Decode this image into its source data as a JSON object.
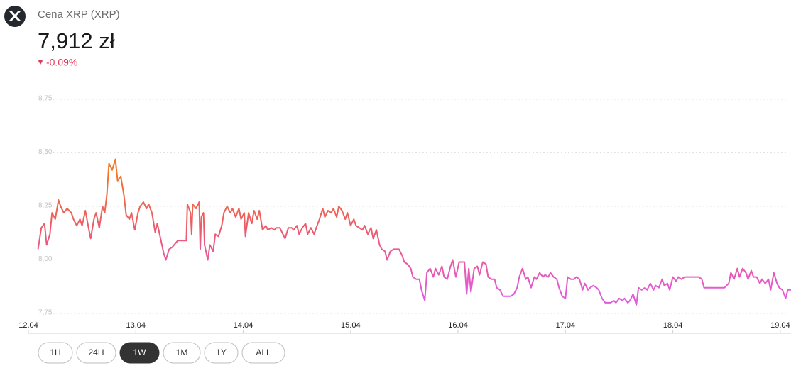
{
  "header": {
    "title": "Cena XRP (XRP)",
    "price": "7,912 zł",
    "change": "-0.09%"
  },
  "range_buttons": [
    "1H",
    "24H",
    "1W",
    "1M",
    "1Y",
    "ALL"
  ],
  "active_range_index": 2,
  "chart_data": {
    "type": "line",
    "xlim": [
      0,
      7.1
    ],
    "xticks": [
      {
        "value": 0,
        "label": "12.04"
      },
      {
        "value": 1,
        "label": "13.04"
      },
      {
        "value": 2,
        "label": "14.04"
      },
      {
        "value": 3,
        "label": "15.04"
      },
      {
        "value": 4,
        "label": "16.04"
      },
      {
        "value": 5,
        "label": "17.04"
      },
      {
        "value": 6,
        "label": "18.04"
      },
      {
        "value": 7,
        "label": "19.04"
      }
    ],
    "ylim": [
      7.73,
      8.78
    ],
    "yticks": [
      {
        "value": 8.75,
        "label": "8,75"
      },
      {
        "value": 8.5,
        "label": "8,50"
      },
      {
        "value": 8.25,
        "label": "8,25"
      },
      {
        "value": 8.0,
        "label": "8,00"
      },
      {
        "value": 7.75,
        "label": "7,75"
      }
    ],
    "grid": true,
    "gradient_colors": [
      "#f47a1f",
      "#ec5a6e",
      "#e25ae0"
    ],
    "x": [
      0.09,
      0.12,
      0.15,
      0.17,
      0.2,
      0.22,
      0.25,
      0.28,
      0.3,
      0.33,
      0.36,
      0.4,
      0.42,
      0.45,
      0.48,
      0.5,
      0.53,
      0.56,
      0.58,
      0.61,
      0.63,
      0.66,
      0.69,
      0.71,
      0.73,
      0.75,
      0.78,
      0.81,
      0.83,
      0.86,
      0.89,
      0.91,
      0.94,
      0.96,
      0.99,
      1.02,
      1.04,
      1.07,
      1.1,
      1.12,
      1.15,
      1.18,
      1.2,
      1.23,
      1.26,
      1.28,
      1.31,
      1.34,
      1.39,
      1.47,
      1.48,
      1.51,
      1.52,
      1.53,
      1.56,
      1.59,
      1.6,
      1.61,
      1.63,
      1.64,
      1.67,
      1.69,
      1.72,
      1.74,
      1.77,
      1.8,
      1.82,
      1.85,
      1.88,
      1.9,
      1.93,
      1.96,
      1.98,
      2.01,
      2.02,
      2.05,
      2.08,
      2.1,
      2.13,
      2.15,
      2.18,
      2.21,
      2.23,
      2.26,
      2.29,
      2.31,
      2.34,
      2.37,
      2.39,
      2.42,
      2.45,
      2.47,
      2.5,
      2.52,
      2.55,
      2.58,
      2.6,
      2.63,
      2.66,
      2.68,
      2.71,
      2.74,
      2.76,
      2.79,
      2.82,
      2.84,
      2.87,
      2.89,
      2.92,
      2.95,
      2.97,
      3.0,
      3.03,
      3.05,
      3.08,
      3.11,
      3.13,
      3.16,
      3.19,
      3.21,
      3.24,
      3.27,
      3.29,
      3.32,
      3.34,
      3.37,
      3.4,
      3.42,
      3.45,
      3.48,
      3.5,
      3.53,
      3.56,
      3.58,
      3.61,
      3.64,
      3.66,
      3.69,
      3.71,
      3.74,
      3.77,
      3.79,
      3.82,
      3.85,
      3.87,
      3.9,
      3.93,
      3.95,
      3.98,
      4.01,
      4.03,
      4.06,
      4.08,
      4.1,
      4.12,
      4.15,
      4.18,
      4.2,
      4.23,
      4.26,
      4.28,
      4.31,
      4.34,
      4.36,
      4.39,
      4.42,
      4.49,
      4.52,
      4.55,
      4.57,
      4.6,
      4.63,
      4.65,
      4.68,
      4.71,
      4.73,
      4.76,
      4.79,
      4.81,
      4.84,
      4.86,
      4.89,
      4.92,
      4.94,
      4.97,
      5.0,
      5.02,
      5.05,
      5.08,
      5.1,
      5.13,
      5.16,
      5.18,
      5.21,
      5.23,
      5.26,
      5.29,
      5.31,
      5.34,
      5.37,
      5.42,
      5.45,
      5.47,
      5.5,
      5.53,
      5.55,
      5.58,
      5.6,
      5.63,
      5.66,
      5.68,
      5.71,
      5.74,
      5.76,
      5.79,
      5.82,
      5.84,
      5.87,
      5.9,
      5.92,
      5.95,
      5.97,
      6.0,
      6.03,
      6.05,
      6.08,
      6.11,
      6.13,
      6.16,
      6.19,
      6.21,
      6.24,
      6.27,
      6.29,
      6.48,
      6.52,
      6.54,
      6.57,
      6.6,
      6.62,
      6.65,
      6.68,
      6.7,
      6.73,
      6.75,
      6.78,
      6.81,
      6.83,
      6.86,
      6.89,
      6.91,
      6.94,
      6.97,
      6.99,
      7.02,
      7.05,
      7.07,
      7.1
    ],
    "values": [
      8.05,
      8.15,
      8.17,
      8.07,
      8.12,
      8.22,
      8.19,
      8.28,
      8.25,
      8.22,
      8.24,
      8.22,
      8.19,
      8.16,
      8.19,
      8.16,
      8.23,
      8.15,
      8.1,
      8.19,
      8.22,
      8.15,
      8.25,
      8.22,
      8.3,
      8.45,
      8.42,
      8.47,
      8.37,
      8.39,
      8.3,
      8.21,
      8.19,
      8.22,
      8.14,
      8.22,
      8.25,
      8.27,
      8.24,
      8.26,
      8.22,
      8.13,
      8.17,
      8.1,
      8.03,
      8.0,
      8.05,
      8.06,
      8.09,
      8.09,
      8.26,
      8.22,
      8.12,
      8.26,
      8.24,
      8.27,
      8.05,
      8.2,
      8.22,
      8.07,
      8.0,
      8.07,
      8.04,
      8.12,
      8.11,
      8.16,
      8.22,
      8.25,
      8.22,
      8.24,
      8.2,
      8.24,
      8.19,
      8.22,
      8.11,
      8.22,
      8.17,
      8.23,
      8.19,
      8.23,
      8.14,
      8.16,
      8.14,
      8.15,
      8.14,
      8.15,
      8.15,
      8.12,
      8.1,
      8.15,
      8.15,
      8.14,
      8.16,
      8.12,
      8.15,
      8.17,
      8.12,
      8.15,
      8.12,
      8.15,
      8.19,
      8.24,
      8.2,
      8.23,
      8.22,
      8.24,
      8.2,
      8.25,
      8.23,
      8.19,
      8.22,
      8.16,
      8.19,
      8.16,
      8.15,
      8.14,
      8.16,
      8.12,
      8.15,
      8.1,
      8.14,
      8.07,
      8.05,
      8.04,
      8.0,
      8.04,
      8.05,
      8.05,
      8.05,
      8.02,
      7.99,
      7.98,
      7.96,
      7.92,
      7.91,
      7.91,
      7.86,
      7.81,
      7.94,
      7.96,
      7.92,
      7.96,
      7.93,
      7.97,
      7.92,
      7.91,
      7.97,
      8.0,
      7.92,
      7.99,
      7.99,
      7.99,
      7.84,
      7.96,
      7.85,
      7.96,
      7.97,
      7.93,
      7.99,
      7.98,
      7.92,
      7.91,
      7.91,
      7.87,
      7.86,
      7.83,
      7.83,
      7.84,
      7.87,
      7.92,
      7.96,
      7.91,
      7.92,
      7.87,
      7.92,
      7.91,
      7.94,
      7.92,
      7.93,
      7.92,
      7.94,
      7.92,
      7.91,
      7.87,
      7.83,
      7.82,
      7.92,
      7.91,
      7.91,
      7.92,
      7.91,
      7.86,
      7.89,
      7.86,
      7.87,
      7.88,
      7.87,
      7.86,
      7.82,
      7.8,
      7.8,
      7.81,
      7.8,
      7.82,
      7.81,
      7.82,
      7.8,
      7.81,
      7.84,
      7.79,
      7.87,
      7.86,
      7.87,
      7.86,
      7.89,
      7.86,
      7.88,
      7.87,
      7.91,
      7.88,
      7.89,
      7.86,
      7.92,
      7.9,
      7.92,
      7.91,
      7.92,
      7.92,
      7.92,
      7.92,
      7.92,
      7.92,
      7.91,
      7.87,
      7.87,
      7.89,
      7.94,
      7.91,
      7.96,
      7.92,
      7.96,
      7.94,
      7.91,
      7.95,
      7.92,
      7.92,
      7.89,
      7.91,
      7.89,
      7.91,
      7.86,
      7.94,
      7.89,
      7.87,
      7.86,
      7.82,
      7.86,
      7.86
    ]
  }
}
